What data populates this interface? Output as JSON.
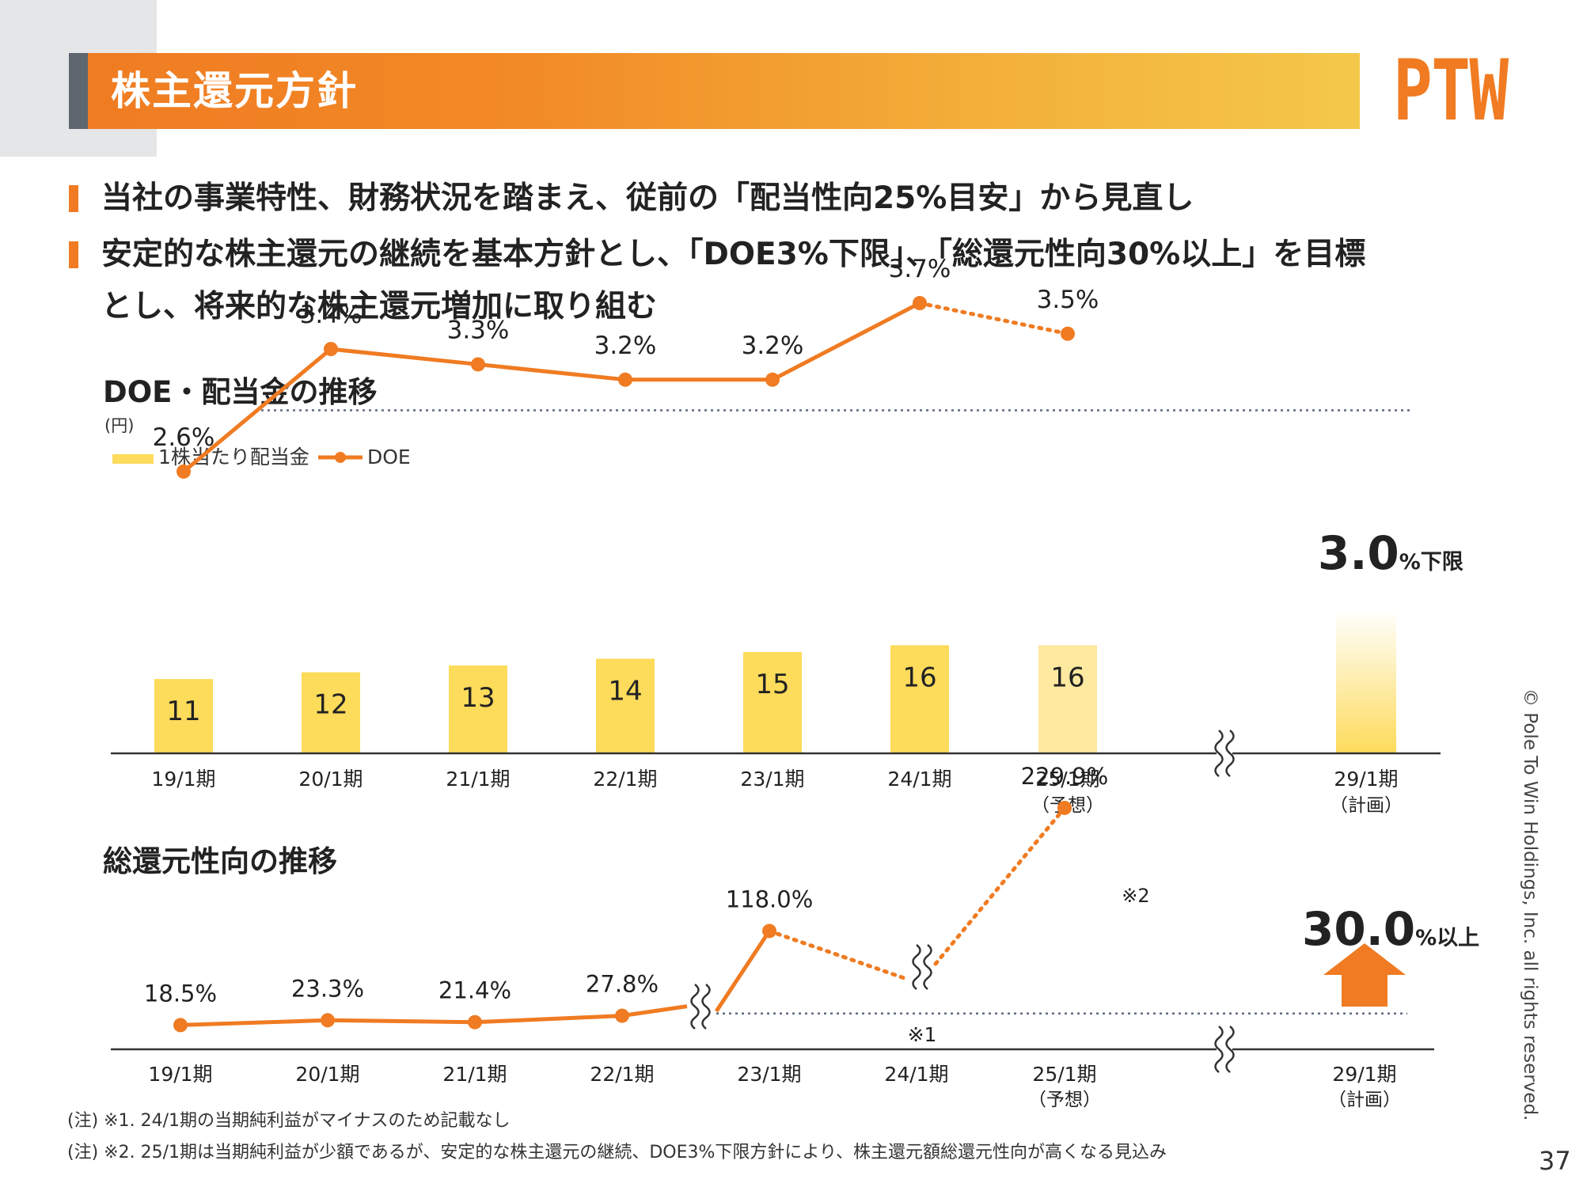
{
  "header": {
    "title": "株主還元方針",
    "logo": "PTW"
  },
  "bullets": [
    {
      "lines": [
        "当社の事業特性、財務状況を踏まえ、従前の「配当性向25%目安」から見直し"
      ]
    },
    {
      "lines": [
        "安定的な株主還元の継続を基本方針とし、「DOE3%下限」、「総還元性向30%以上」を目標",
        "とし、将来的な株主還元増加に取り組む"
      ]
    }
  ],
  "colors": {
    "accent": "#f07b22",
    "bar": "#fddb5b",
    "bar_forecast": "#fde9a0",
    "threshold": "#5e6a80"
  },
  "chart_data": [
    {
      "type": "bar",
      "title": "DOE・配当金の推移",
      "unit": "(円)",
      "categories": [
        "19/1期",
        "20/1期",
        "21/1期",
        "22/1期",
        "23/1期",
        "24/1期",
        "25/1期",
        "29/1期"
      ],
      "category_notes": [
        "",
        "",
        "",
        "",
        "",
        "",
        "（予想）",
        "（計画）"
      ],
      "legend": [
        "1株当たり配当金",
        "DOE"
      ],
      "series": [
        {
          "name": "1株当たり配当金",
          "type": "bar",
          "values": [
            11,
            12,
            13,
            14,
            15,
            16,
            16,
            null
          ],
          "labels": [
            "11",
            "12",
            "13",
            "14",
            "15",
            "16",
            "16",
            ""
          ]
        },
        {
          "name": "DOE",
          "type": "line",
          "values": [
            2.6,
            3.4,
            3.3,
            3.2,
            3.2,
            3.7,
            3.5,
            null
          ],
          "labels": [
            "2.6%",
            "3.4%",
            "3.3%",
            "3.2%",
            "3.2%",
            "3.7%",
            "3.5%",
            ""
          ]
        }
      ],
      "target": {
        "value": 3.0,
        "value_text": "3.0",
        "suffix": "%下限"
      }
    },
    {
      "type": "line",
      "title": "総還元性向の推移",
      "categories": [
        "19/1期",
        "20/1期",
        "21/1期",
        "22/1期",
        "23/1期",
        "24/1期",
        "25/1期",
        "29/1期"
      ],
      "category_notes": [
        "",
        "",
        "",
        "",
        "",
        "",
        "（予想）",
        "（計画）"
      ],
      "series": [
        {
          "name": "",
          "values": [
            18.5,
            23.3,
            21.4,
            27.8,
            118.0,
            null,
            229.9,
            null
          ],
          "labels": [
            "18.5%",
            "23.3%",
            "21.4%",
            "27.8%",
            "118.0%",
            "",
            "229.9%",
            ""
          ]
        }
      ],
      "annotations": {
        "missing_note": "※1",
        "high_note": "※2"
      },
      "target": {
        "value": 30.0,
        "value_text": "30.0",
        "suffix": "%以上"
      }
    }
  ],
  "notes": [
    "(注) ※1. 24/1期の当期純利益がマイナスのため記載なし",
    "(注) ※2. 25/1期は当期純利益が少額であるが、安定的な株主還元の継続、DOE3%下限方針により、株主還元額総還元性向が高くなる見込み"
  ],
  "footer": {
    "copyright": "© Pole To Win Holdings, Inc. all rights reserved.",
    "page_number": "37"
  }
}
